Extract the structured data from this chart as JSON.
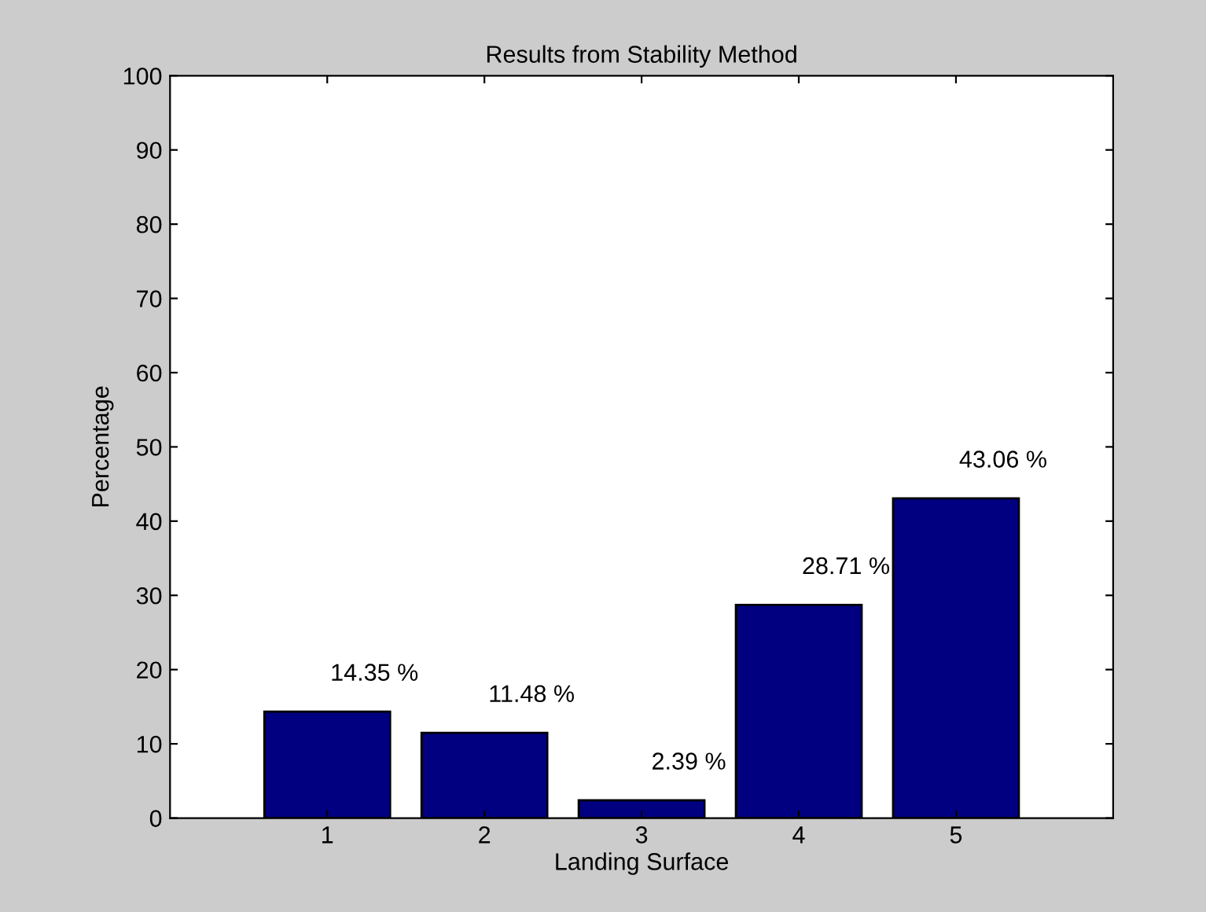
{
  "chart_data": {
    "type": "bar",
    "title": "Results from Stability Method",
    "xlabel": "Landing Surface",
    "ylabel": "Percentage",
    "categories": [
      "1",
      "2",
      "3",
      "4",
      "5"
    ],
    "values": [
      14.35,
      11.48,
      2.39,
      28.71,
      43.06
    ],
    "value_labels": [
      "14.35 %",
      "11.48 %",
      "2.39 %",
      "28.71 %",
      "43.06 %"
    ],
    "color": "#000080",
    "ylim": [
      0,
      100
    ],
    "yticks": [
      0,
      10,
      20,
      30,
      40,
      50,
      60,
      70,
      80,
      90,
      100
    ],
    "grid": false
  }
}
